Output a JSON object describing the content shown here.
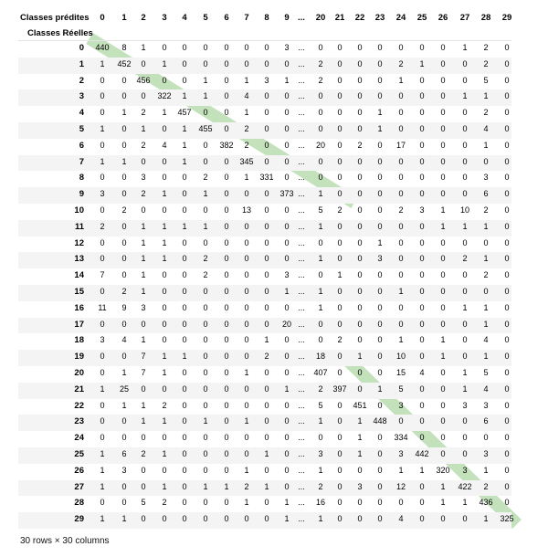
{
  "table": {
    "col_axis_label": "Classes prédites",
    "row_axis_label": "Classes Réelles",
    "columns": [
      "0",
      "1",
      "2",
      "3",
      "4",
      "5",
      "6",
      "7",
      "8",
      "9",
      "...",
      "20",
      "21",
      "22",
      "23",
      "24",
      "25",
      "26",
      "27",
      "28",
      "29"
    ],
    "row_labels": [
      "0",
      "1",
      "2",
      "3",
      "4",
      "5",
      "6",
      "7",
      "8",
      "9",
      "10",
      "11",
      "12",
      "13",
      "14",
      "15",
      "16",
      "17",
      "18",
      "19",
      "20",
      "21",
      "22",
      "23",
      "24",
      "25",
      "26",
      "27",
      "28",
      "29"
    ],
    "rows": [
      [
        "440",
        "8",
        "1",
        "0",
        "0",
        "0",
        "0",
        "0",
        "0",
        "3",
        "...",
        "0",
        "0",
        "0",
        "0",
        "0",
        "0",
        "0",
        "1",
        "2",
        "0"
      ],
      [
        "1",
        "452",
        "0",
        "1",
        "0",
        "0",
        "0",
        "0",
        "0",
        "0",
        "...",
        "2",
        "0",
        "0",
        "0",
        "2",
        "1",
        "0",
        "0",
        "2",
        "0"
      ],
      [
        "0",
        "0",
        "456",
        "0",
        "0",
        "1",
        "0",
        "1",
        "3",
        "1",
        "...",
        "2",
        "0",
        "0",
        "0",
        "1",
        "0",
        "0",
        "0",
        "5",
        "0"
      ],
      [
        "0",
        "0",
        "0",
        "322",
        "1",
        "1",
        "0",
        "4",
        "0",
        "0",
        "...",
        "0",
        "0",
        "0",
        "0",
        "0",
        "0",
        "0",
        "1",
        "1",
        "0"
      ],
      [
        "0",
        "1",
        "2",
        "1",
        "457",
        "0",
        "0",
        "1",
        "0",
        "0",
        "...",
        "0",
        "0",
        "0",
        "1",
        "0",
        "0",
        "0",
        "0",
        "2",
        "0"
      ],
      [
        "1",
        "0",
        "1",
        "0",
        "1",
        "455",
        "0",
        "2",
        "0",
        "0",
        "...",
        "0",
        "0",
        "0",
        "1",
        "0",
        "0",
        "0",
        "0",
        "4",
        "0"
      ],
      [
        "0",
        "0",
        "2",
        "4",
        "1",
        "0",
        "382",
        "2",
        "0",
        "0",
        "...",
        "20",
        "0",
        "2",
        "0",
        "17",
        "0",
        "0",
        "0",
        "1",
        "0"
      ],
      [
        "1",
        "1",
        "0",
        "0",
        "1",
        "0",
        "0",
        "345",
        "0",
        "0",
        "...",
        "0",
        "0",
        "0",
        "0",
        "0",
        "0",
        "0",
        "0",
        "0",
        "0"
      ],
      [
        "0",
        "0",
        "3",
        "0",
        "0",
        "2",
        "0",
        "1",
        "331",
        "0",
        "...",
        "0",
        "0",
        "0",
        "0",
        "0",
        "0",
        "0",
        "0",
        "3",
        "0"
      ],
      [
        "3",
        "0",
        "2",
        "1",
        "0",
        "1",
        "0",
        "0",
        "0",
        "373",
        "...",
        "1",
        "0",
        "0",
        "0",
        "0",
        "0",
        "0",
        "0",
        "6",
        "0"
      ],
      [
        "0",
        "2",
        "0",
        "0",
        "0",
        "0",
        "0",
        "13",
        "0",
        "0",
        "...",
        "5",
        "2",
        "0",
        "0",
        "2",
        "3",
        "1",
        "10",
        "2",
        "0"
      ],
      [
        "2",
        "0",
        "1",
        "1",
        "1",
        "1",
        "0",
        "0",
        "0",
        "0",
        "...",
        "1",
        "0",
        "0",
        "0",
        "0",
        "0",
        "1",
        "1",
        "1",
        "0"
      ],
      [
        "0",
        "0",
        "1",
        "1",
        "0",
        "0",
        "0",
        "0",
        "0",
        "0",
        "...",
        "0",
        "0",
        "0",
        "1",
        "0",
        "0",
        "0",
        "0",
        "0",
        "0"
      ],
      [
        "0",
        "0",
        "1",
        "1",
        "0",
        "2",
        "0",
        "0",
        "0",
        "0",
        "...",
        "1",
        "0",
        "0",
        "3",
        "0",
        "0",
        "0",
        "2",
        "1",
        "0"
      ],
      [
        "7",
        "0",
        "1",
        "0",
        "0",
        "2",
        "0",
        "0",
        "0",
        "3",
        "...",
        "0",
        "1",
        "0",
        "0",
        "0",
        "0",
        "0",
        "0",
        "2",
        "0"
      ],
      [
        "0",
        "2",
        "1",
        "0",
        "0",
        "0",
        "0",
        "0",
        "0",
        "1",
        "...",
        "1",
        "0",
        "0",
        "0",
        "1",
        "0",
        "0",
        "0",
        "0",
        "0"
      ],
      [
        "11",
        "9",
        "3",
        "0",
        "0",
        "0",
        "0",
        "0",
        "0",
        "0",
        "...",
        "1",
        "0",
        "0",
        "0",
        "0",
        "0",
        "0",
        "1",
        "1",
        "0"
      ],
      [
        "0",
        "0",
        "0",
        "0",
        "0",
        "0",
        "0",
        "0",
        "0",
        "20",
        "...",
        "0",
        "0",
        "0",
        "0",
        "0",
        "0",
        "0",
        "0",
        "1",
        "0"
      ],
      [
        "3",
        "4",
        "1",
        "0",
        "0",
        "0",
        "0",
        "0",
        "1",
        "0",
        "...",
        "0",
        "2",
        "0",
        "0",
        "1",
        "0",
        "1",
        "0",
        "4",
        "0"
      ],
      [
        "0",
        "0",
        "7",
        "1",
        "1",
        "0",
        "0",
        "0",
        "2",
        "0",
        "...",
        "18",
        "0",
        "1",
        "0",
        "10",
        "0",
        "1",
        "0",
        "1",
        "0"
      ],
      [
        "0",
        "1",
        "7",
        "1",
        "0",
        "0",
        "0",
        "1",
        "0",
        "0",
        "...",
        "407",
        "0",
        "0",
        "0",
        "15",
        "4",
        "0",
        "1",
        "5",
        "0"
      ],
      [
        "1",
        "25",
        "0",
        "0",
        "0",
        "0",
        "0",
        "0",
        "0",
        "1",
        "...",
        "2",
        "397",
        "0",
        "1",
        "5",
        "0",
        "0",
        "1",
        "4",
        "0"
      ],
      [
        "0",
        "1",
        "1",
        "2",
        "0",
        "0",
        "0",
        "0",
        "0",
        "0",
        "...",
        "5",
        "0",
        "451",
        "0",
        "3",
        "0",
        "0",
        "3",
        "3",
        "0"
      ],
      [
        "0",
        "0",
        "1",
        "1",
        "0",
        "1",
        "0",
        "1",
        "0",
        "0",
        "...",
        "1",
        "0",
        "1",
        "448",
        "0",
        "0",
        "0",
        "0",
        "6",
        "0"
      ],
      [
        "0",
        "0",
        "0",
        "0",
        "0",
        "0",
        "0",
        "0",
        "0",
        "0",
        "...",
        "0",
        "0",
        "1",
        "0",
        "334",
        "0",
        "0",
        "0",
        "0",
        "0"
      ],
      [
        "1",
        "6",
        "2",
        "1",
        "0",
        "0",
        "0",
        "0",
        "1",
        "0",
        "...",
        "3",
        "0",
        "1",
        "0",
        "3",
        "442",
        "0",
        "0",
        "3",
        "0"
      ],
      [
        "1",
        "3",
        "0",
        "0",
        "0",
        "0",
        "0",
        "1",
        "0",
        "0",
        "...",
        "1",
        "0",
        "0",
        "0",
        "1",
        "1",
        "320",
        "3",
        "1",
        "0"
      ],
      [
        "1",
        "0",
        "0",
        "1",
        "0",
        "1",
        "1",
        "2",
        "1",
        "0",
        "...",
        "2",
        "0",
        "3",
        "0",
        "12",
        "0",
        "1",
        "422",
        "2",
        "0"
      ],
      [
        "0",
        "0",
        "5",
        "2",
        "0",
        "0",
        "0",
        "1",
        "0",
        "1",
        "...",
        "16",
        "0",
        "0",
        "0",
        "0",
        "0",
        "1",
        "1",
        "436",
        "0"
      ],
      [
        "1",
        "1",
        "0",
        "0",
        "0",
        "0",
        "0",
        "0",
        "0",
        "1",
        "...",
        "1",
        "0",
        "0",
        "0",
        "4",
        "0",
        "0",
        "0",
        "1",
        "325"
      ]
    ],
    "shape_text": "30 rows × 30 columns"
  },
  "colors": {
    "highlight": "#b9dcb0",
    "stripe": "#f4f4f4",
    "rule": "#e2e2e2"
  }
}
